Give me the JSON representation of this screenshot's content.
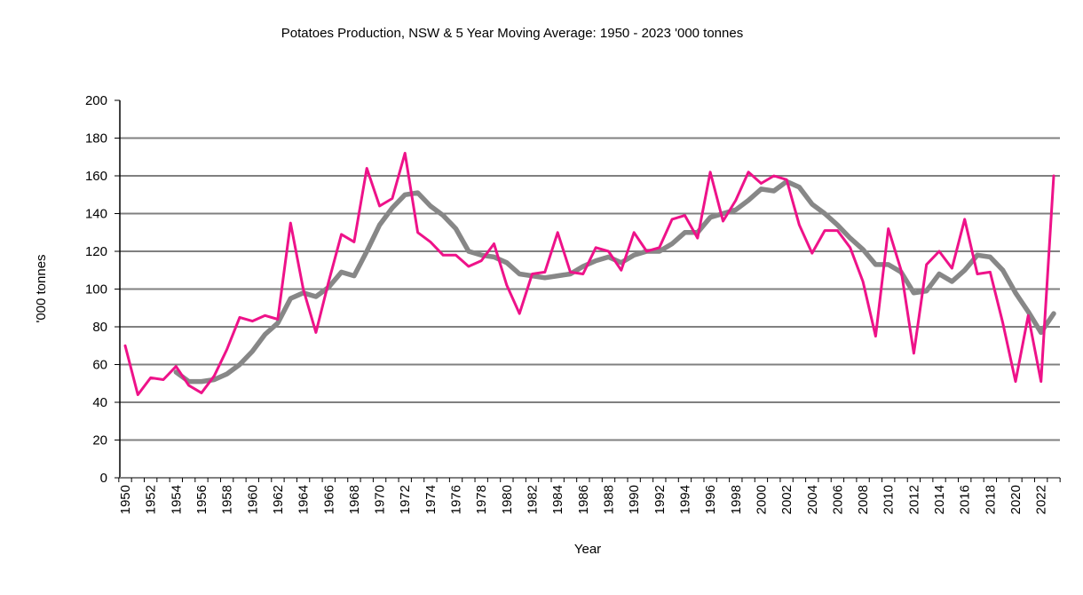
{
  "chart_data": {
    "type": "line",
    "title": "Potatoes Production, NSW & 5 Year Moving Average: 1950 - 2023 '000 tonnes",
    "xlabel": "Year",
    "ylabel": "'000 tonnes",
    "ylim": [
      0,
      200
    ],
    "xlim": [
      1950,
      2023
    ],
    "yticks": [
      0,
      20,
      40,
      60,
      80,
      100,
      120,
      140,
      160,
      180,
      200
    ],
    "xtick_labels": [
      "1950",
      "1952",
      "1954",
      "1956",
      "1958",
      "1960",
      "1962",
      "1964",
      "1966",
      "1968",
      "1970",
      "1972",
      "1974",
      "1976",
      "1978",
      "1980",
      "1982",
      "1984",
      "1986",
      "1988",
      "1990",
      "1992",
      "1994",
      "1996",
      "1998",
      "2000",
      "2002",
      "2004",
      "2006",
      "2008",
      "2010",
      "2012",
      "2014",
      "2016",
      "2018",
      "2020",
      "2022"
    ],
    "grid": "horizontal",
    "legend": "none",
    "x": [
      1950,
      1951,
      1952,
      1953,
      1954,
      1955,
      1956,
      1957,
      1958,
      1959,
      1960,
      1961,
      1962,
      1963,
      1964,
      1965,
      1966,
      1967,
      1968,
      1969,
      1970,
      1971,
      1972,
      1973,
      1974,
      1975,
      1976,
      1977,
      1978,
      1979,
      1980,
      1981,
      1982,
      1983,
      1984,
      1985,
      1986,
      1987,
      1988,
      1989,
      1990,
      1991,
      1992,
      1993,
      1994,
      1995,
      1996,
      1997,
      1998,
      1999,
      2000,
      2001,
      2002,
      2003,
      2004,
      2005,
      2006,
      2007,
      2008,
      2009,
      2010,
      2011,
      2012,
      2013,
      2014,
      2015,
      2016,
      2017,
      2018,
      2019,
      2020,
      2021,
      2022,
      2023
    ],
    "series": [
      {
        "name": "Production",
        "color": "#EE1289",
        "values": [
          70,
          44,
          53,
          52,
          59,
          49,
          45,
          54,
          68,
          85,
          83,
          86,
          84,
          135,
          100,
          77,
          104,
          129,
          125,
          164,
          144,
          148,
          172,
          130,
          125,
          118,
          118,
          112,
          115,
          124,
          102,
          87,
          108,
          109,
          130,
          109,
          108,
          122,
          120,
          110,
          130,
          120,
          122,
          137,
          139,
          127,
          162,
          136,
          147,
          162,
          156,
          160,
          158,
          134,
          119,
          131,
          131,
          122,
          104,
          75,
          132,
          110,
          66,
          113,
          120,
          111,
          137,
          108,
          109,
          82,
          51,
          86,
          51,
          160
        ]
      },
      {
        "name": "5 Year Moving Average",
        "color": "#878787",
        "values": [
          null,
          null,
          null,
          null,
          56,
          51,
          51,
          52,
          55,
          60,
          67,
          76,
          82,
          95,
          98,
          96,
          101,
          109,
          107,
          120,
          134,
          143,
          150,
          151,
          144,
          139,
          132,
          120,
          118,
          117,
          114,
          108,
          107,
          106,
          107,
          108,
          112,
          115,
          117,
          114,
          118,
          120,
          120,
          124,
          130,
          130,
          138,
          140,
          142,
          147,
          153,
          152,
          157,
          154,
          145,
          140,
          134,
          127,
          121,
          113,
          113,
          109,
          98,
          99,
          108,
          104,
          110,
          118,
          117,
          110,
          98,
          88,
          77,
          87
        ]
      }
    ]
  }
}
